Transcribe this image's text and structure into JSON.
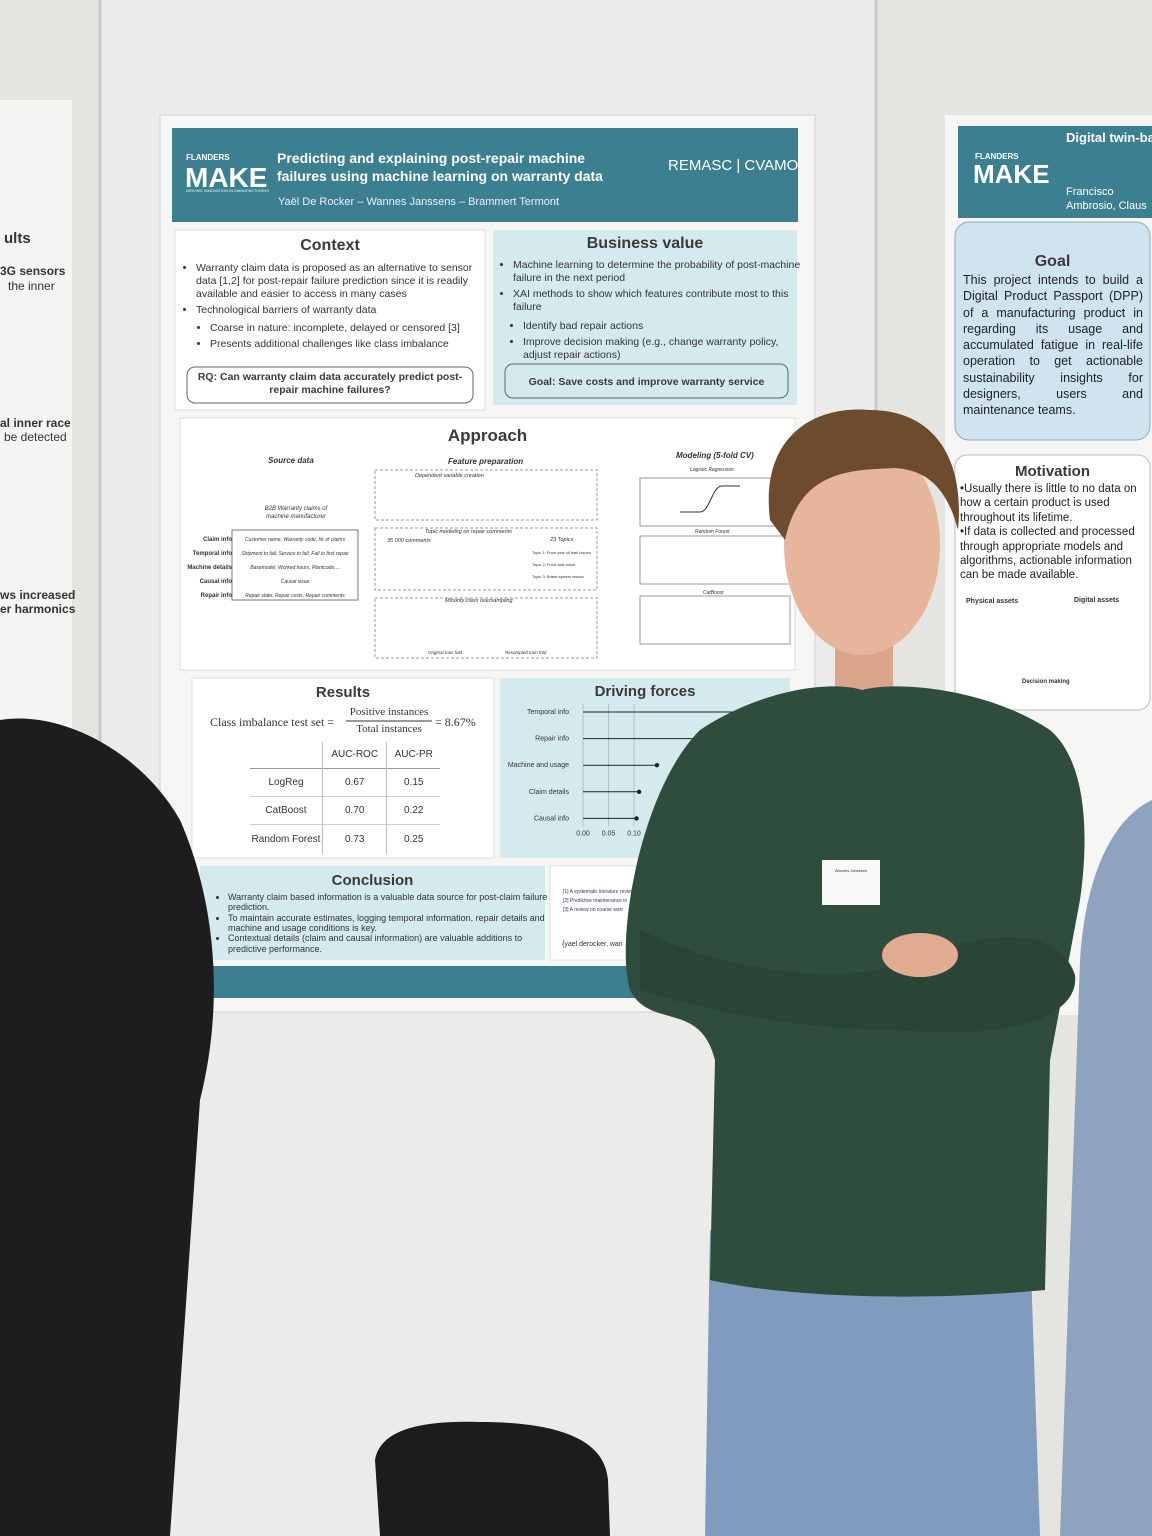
{
  "poster": {
    "logo_top": "FLANDERS",
    "logo_main": "MAKE",
    "logo_sub": "DRIVING INNOVATION IN MANUFACTURING",
    "title": "Predicting and explaining post-repair machine failures using machine learning on warranty data",
    "tag": "REMASC | CVAMO",
    "authors": "Yaël De Rocker – Wannes Janssens – Brammert Termont",
    "context": {
      "heading": "Context",
      "items": [
        "Warranty claim data is proposed as an alternative to sensor data [1,2] for post-repair failure prediction since it is readily available and easier to access in many cases",
        "Technological barriers of warranty data"
      ],
      "subitems": [
        "Coarse in nature: incomplete, delayed or censored [3]",
        "Presents additional challenges like class imbalance"
      ],
      "rq": "RQ: Can warranty claim data accurately predict post-repair machine failures?"
    },
    "business": {
      "heading": "Business value",
      "items": [
        "Machine learning to determine the probability of post-machine failure in the next period",
        "XAI methods to show which features contribute most to this failure"
      ],
      "subitems": [
        "Identify bad repair actions",
        "Improve decision making (e.g., change warranty policy, adjust repair actions)"
      ],
      "goal": "Goal: Save costs and improve warranty service"
    },
    "approach": {
      "heading": "Approach",
      "source": "Source data",
      "features": "Feature preparation",
      "modeling": "Modeling (5-fold CV)",
      "claims": "B2B Warranty claims of machine manufacturer",
      "rows": [
        "Claim info",
        "Temporal info",
        "Machine details",
        "Causal info",
        "Repair info"
      ],
      "row_text": [
        "Customer name, Warranty code, Nr of claims",
        "Shipment to fail, Service to fail, Fail to first repair",
        "Basemodel, Worked hours, Plantcode,...",
        "Causal issue",
        "Repair state, Repair costs, Repair comments"
      ],
      "steps": [
        "Dependent variable creation",
        "Topic modeling on repair comments",
        "Minority class oversampling"
      ],
      "comments": "35 000 comments",
      "topics": "23 Topics",
      "topic_list": [
        "Topic 1: Front axle oil leak issues",
        "Topic 2: Front axle noise",
        "Topic 3: Brake system issues"
      ],
      "folds": [
        "Original train fold",
        "Resampled train fold"
      ],
      "models": [
        "Logistic Regression",
        "Random Forest",
        "CatBoost"
      ]
    },
    "results": {
      "heading": "Results",
      "formula_left": "Class imbalance test set =",
      "numerator": "Positive instances",
      "denominator": "Total instances",
      "formula_right": "= 8.67%",
      "columns": [
        "AUC-ROC",
        "AUC-PR"
      ],
      "rows": [
        [
          "LogReg",
          "0.67",
          "0.15"
        ],
        [
          "CatBoost",
          "0.70",
          "0.22"
        ],
        [
          "Random Forest",
          "0.73",
          "0.25"
        ]
      ]
    },
    "driving": {
      "heading": "Driving forces",
      "categories": [
        "Temporal info",
        "Repair info",
        "Machine and usage",
        "Claim details",
        "Causal info"
      ],
      "values": [
        0.385,
        0.27,
        0.145,
        0.11,
        0.105
      ],
      "xlim": [
        0,
        0.4
      ],
      "xticks": [
        {
          "value": 0,
          "label": "0.00"
        },
        {
          "value": 0.05,
          "label": "0.05"
        },
        {
          "value": 0.1,
          "label": "0.10"
        }
      ]
    },
    "conclusion": {
      "heading": "Conclusion",
      "items": [
        "Warranty claim based information is a valuable data source for post-claim failure prediction.",
        "To maintain accurate estimates, logging temporal information, repair details and machine and usage conditions is key.",
        "Contextual details (claim and causal information) are valuable additions to predictive performance."
      ]
    },
    "references": {
      "items": [
        "[1] A systematic literature review",
        "[2] Predictive maintenance in",
        "[3] A review on coarse warr"
      ],
      "contact": "{yael.derocker, wan"
    },
    "name_tag": "Wannes Janssens"
  },
  "right_poster": {
    "logo_top": "FLANDERS",
    "logo_main": "MAKE",
    "title": "Digital twin-based estimation as sustainability",
    "authors": "Francisco Ambrosio, Claus Claeys, F",
    "goal_heading": "Goal",
    "goal": "This project intends to build a Digital Product Passport (DPP) of a manufacturing product in regarding its usage and accumulated fatigue in real-life operation to get actionable sustainability insights for designers, users and maintenance teams.",
    "motivation_heading": "Motivation",
    "motivation": [
      "•Usually there is little to no data on how a certain product is used throughout its lifetime.",
      "•If data is collected and processed through appropriate models and algorithms, actionable information can be made available."
    ],
    "assets": [
      "Physical assets",
      "Digital assets",
      "Decision making"
    ]
  },
  "left_poster": {
    "fragments": [
      "ults",
      "3G sensors",
      "the inner",
      "al inner race",
      "be detected",
      "ws increased",
      "er harmonics"
    ]
  }
}
